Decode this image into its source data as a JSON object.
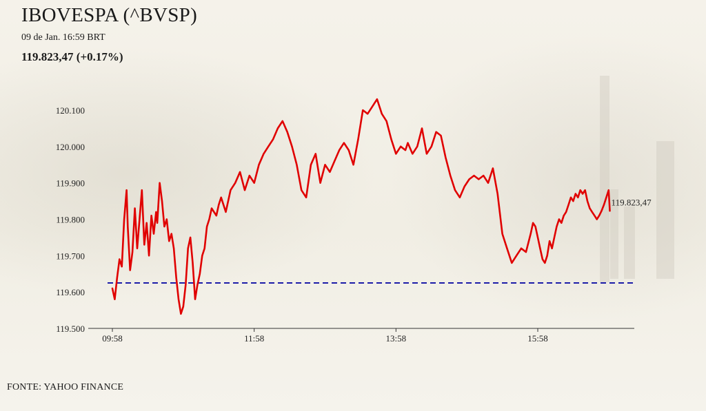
{
  "header": {
    "title": "IBOVESPA (^BVSP)",
    "timestamp": "09 de Jan. 16:59 BRT",
    "quote": "119.823,47 (+0.17%)"
  },
  "footer": {
    "source": "FONTE: YAHOO FINANCE"
  },
  "colors": {
    "line": "#e00000",
    "reference": "#1a1aa8",
    "axis": "#333333",
    "background": "#f3f0e6"
  },
  "chart_data": {
    "type": "line",
    "title": "IBOVESPA (^BVSP)",
    "xlabel": "",
    "ylabel": "",
    "y_ticks": [
      119500,
      119600,
      119700,
      119800,
      119900,
      120000,
      120100
    ],
    "y_tick_labels": [
      "119.500",
      "119.600",
      "119.700",
      "119.800",
      "119.900",
      "120.000",
      "120.100"
    ],
    "ylim": [
      119500,
      120130
    ],
    "x_ticks": [
      "09:58",
      "11:58",
      "13:58",
      "15:58"
    ],
    "x_range": [
      "09:53",
      "17:31"
    ],
    "grid": false,
    "legend": "none",
    "last_value_label": "119.823,47",
    "reference_line": {
      "value": 119625,
      "style": "dashed"
    },
    "series": [
      {
        "x": [
          "09:58",
          "10:00",
          "10:02",
          "10:04",
          "10:06",
          "10:08",
          "10:10",
          "10:11",
          "10:13",
          "10:15",
          "10:17",
          "10:19",
          "10:21",
          "10:23",
          "10:25",
          "10:27",
          "10:29",
          "10:31",
          "10:33",
          "10:35",
          "10:36",
          "10:38",
          "10:40",
          "10:42",
          "10:44",
          "10:46",
          "10:48",
          "10:50",
          "10:52",
          "10:54",
          "10:56",
          "10:58",
          "11:00",
          "11:02",
          "11:04",
          "11:06",
          "11:08",
          "11:10",
          "11:12",
          "11:14",
          "11:16",
          "11:18",
          "11:20",
          "11:22",
          "11:24",
          "11:26",
          "11:28",
          "11:30",
          "11:34",
          "11:38",
          "11:42",
          "11:46",
          "11:50",
          "11:54",
          "11:58",
          "12:02",
          "12:06",
          "12:10",
          "12:14",
          "12:18",
          "12:22",
          "12:26",
          "12:30",
          "12:34",
          "12:38",
          "12:42",
          "12:46",
          "12:50",
          "12:54",
          "12:58",
          "13:02",
          "13:06",
          "13:10",
          "13:14",
          "13:18",
          "13:22",
          "13:26",
          "13:30",
          "13:34",
          "13:38",
          "13:42",
          "13:46",
          "13:50",
          "13:54",
          "13:58",
          "14:02",
          "14:06",
          "14:08",
          "14:12",
          "14:16",
          "14:20",
          "14:24",
          "14:28",
          "14:32",
          "14:36",
          "14:40",
          "14:44",
          "14:48",
          "14:52",
          "14:56",
          "15:00",
          "15:04",
          "15:08",
          "15:12",
          "15:16",
          "15:20",
          "15:24",
          "15:28",
          "15:32",
          "15:36",
          "15:40",
          "15:44",
          "15:48",
          "15:52",
          "15:54",
          "15:56",
          "15:58",
          "16:00",
          "16:02",
          "16:04",
          "16:06",
          "16:08",
          "16:10",
          "16:12",
          "16:14",
          "16:16",
          "16:18",
          "16:20",
          "16:22",
          "16:24",
          "16:26",
          "16:28",
          "16:30",
          "16:32",
          "16:34",
          "16:36",
          "16:38",
          "16:40",
          "16:42",
          "16:44",
          "16:46",
          "16:48",
          "16:50",
          "16:52",
          "16:54",
          "16:56",
          "16:58",
          "16:59"
        ],
        "values": [
          119610,
          119580,
          119640,
          119690,
          119670,
          119800,
          119880,
          119780,
          119660,
          119710,
          119830,
          119720,
          119800,
          119880,
          119730,
          119790,
          119700,
          119810,
          119760,
          119820,
          119790,
          119900,
          119850,
          119780,
          119800,
          119740,
          119760,
          119720,
          119640,
          119580,
          119540,
          119560,
          119620,
          119720,
          119750,
          119680,
          119580,
          119620,
          119650,
          119700,
          119720,
          119780,
          119800,
          119830,
          119820,
          119810,
          119840,
          119860,
          119820,
          119880,
          119900,
          119930,
          119880,
          119920,
          119900,
          119950,
          119980,
          120000,
          120020,
          120050,
          120070,
          120040,
          120000,
          119950,
          119880,
          119860,
          119950,
          119980,
          119900,
          119950,
          119930,
          119960,
          119990,
          120010,
          119990,
          119950,
          120020,
          120100,
          120090,
          120110,
          120130,
          120090,
          120070,
          120020,
          119980,
          120000,
          119990,
          120010,
          119980,
          120000,
          120050,
          119980,
          120000,
          120040,
          120030,
          119970,
          119920,
          119880,
          119860,
          119890,
          119910,
          119920,
          119910,
          119920,
          119900,
          119940,
          119870,
          119760,
          119720,
          119680,
          119700,
          119720,
          119710,
          119760,
          119790,
          119780,
          119750,
          119720,
          119690,
          119680,
          119700,
          119740,
          119720,
          119750,
          119780,
          119800,
          119790,
          119810,
          119820,
          119840,
          119860,
          119850,
          119870,
          119860,
          119880,
          119870,
          119880,
          119850,
          119830,
          119820,
          119810,
          119800,
          119810,
          119823,
          119840,
          119860,
          119880,
          119823
        ]
      }
    ]
  }
}
